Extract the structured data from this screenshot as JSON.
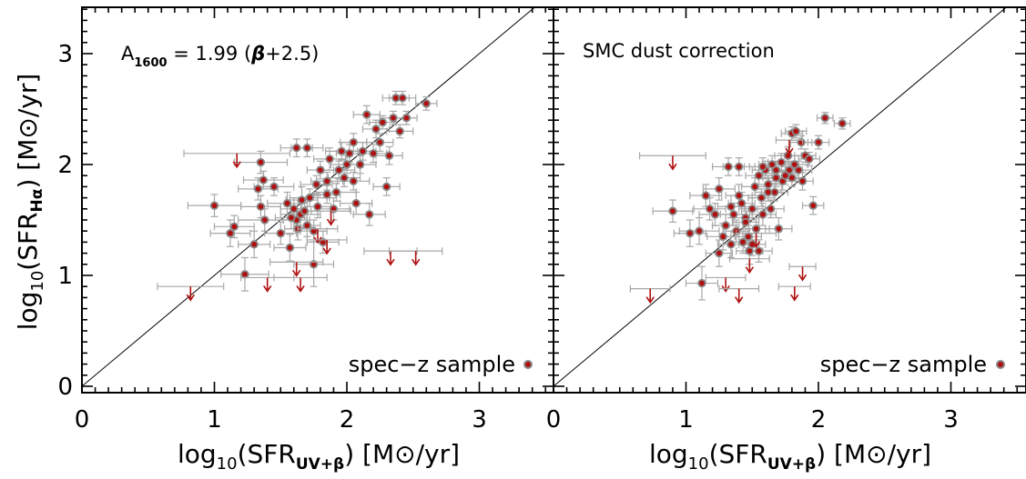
{
  "figure": {
    "ylabel": {
      "pre": "log",
      "sub": "10",
      "mid": "(SFR",
      "msub": "Hα",
      "post": ") [M",
      "sym": "⊙",
      "tail": "/yr]"
    },
    "xlabel": {
      "pre": "log",
      "sub": "10",
      "mid": "(SFR",
      "msub": "UV+β",
      "post": ") [M",
      "sym": "⊙",
      "tail": "/yr]"
    }
  },
  "colors": {
    "point_fill": "#b01010",
    "point_edge": "#8a8a8a",
    "errorbar": "#a8a8a8",
    "upper_limit": "#b01010",
    "axes": "#000000"
  },
  "chart_data": [
    {
      "type": "scatter",
      "panel": "left",
      "annotation": {
        "main": "A",
        "sub": "1600",
        "rest": " = 1.99 (",
        "beta": "β",
        "tail": "+2.5)"
      },
      "legend": {
        "label": "spec−z sample",
        "placement": "bottom-right"
      },
      "xlim": [
        0,
        3.5
      ],
      "ylim": [
        -0.05,
        3.5
      ],
      "xticks": [
        0,
        1,
        2,
        3
      ],
      "yticks": [
        0,
        1,
        2,
        3
      ],
      "one_to_one_line": true,
      "series": [
        {
          "kind": "points",
          "points": [
            {
              "x": 1.0,
              "y": 1.63,
              "xerr": 0.2,
              "yerr": 0.1
            },
            {
              "x": 1.12,
              "y": 1.38,
              "xerr": 0.15,
              "yerr": 0.12
            },
            {
              "x": 1.15,
              "y": 1.44,
              "xerr": 0.15,
              "yerr": 0.1
            },
            {
              "x": 1.23,
              "y": 1.01,
              "xerr": 0.18,
              "yerr": 0.15
            },
            {
              "x": 1.3,
              "y": 1.28,
              "xerr": 0.12,
              "yerr": 0.12
            },
            {
              "x": 1.33,
              "y": 1.78,
              "xerr": 0.15,
              "yerr": 0.1
            },
            {
              "x": 1.35,
              "y": 2.02,
              "xerr": 0.2,
              "yerr": 0.1
            },
            {
              "x": 1.37,
              "y": 1.86,
              "xerr": 0.15,
              "yerr": 0.08
            },
            {
              "x": 1.38,
              "y": 1.5,
              "xerr": 0.2,
              "yerr": 0.1
            },
            {
              "x": 1.45,
              "y": 1.8,
              "xerr": 0.15,
              "yerr": 0.08
            },
            {
              "x": 1.5,
              "y": 1.38,
              "xerr": 0.12,
              "yerr": 0.1
            },
            {
              "x": 1.55,
              "y": 1.65,
              "xerr": 0.15,
              "yerr": 0.1
            },
            {
              "x": 1.57,
              "y": 1.25,
              "xerr": 0.12,
              "yerr": 0.12
            },
            {
              "x": 1.6,
              "y": 1.6,
              "xerr": 0.1,
              "yerr": 0.1
            },
            {
              "x": 1.62,
              "y": 1.5,
              "xerr": 0.1,
              "yerr": 0.1
            },
            {
              "x": 1.63,
              "y": 1.42,
              "xerr": 0.1,
              "yerr": 0.1
            },
            {
              "x": 1.65,
              "y": 1.55,
              "xerr": 0.15,
              "yerr": 0.12
            },
            {
              "x": 1.66,
              "y": 1.68,
              "xerr": 0.12,
              "yerr": 0.12
            },
            {
              "x": 1.68,
              "y": 1.58,
              "xerr": 0.1,
              "yerr": 0.08
            },
            {
              "x": 1.7,
              "y": 1.45,
              "xerr": 0.1,
              "yerr": 0.1
            },
            {
              "x": 1.72,
              "y": 1.7,
              "xerr": 0.15,
              "yerr": 0.08
            },
            {
              "x": 1.75,
              "y": 1.4,
              "xerr": 0.1,
              "yerr": 0.1
            },
            {
              "x": 1.77,
              "y": 1.82,
              "xerr": 0.12,
              "yerr": 0.08
            },
            {
              "x": 1.78,
              "y": 1.62,
              "xerr": 0.1,
              "yerr": 0.1
            },
            {
              "x": 1.8,
              "y": 1.95,
              "xerr": 0.1,
              "yerr": 0.08
            },
            {
              "x": 1.82,
              "y": 1.3,
              "xerr": 0.12,
              "yerr": 0.1
            },
            {
              "x": 1.85,
              "y": 1.73,
              "xerr": 0.1,
              "yerr": 0.08
            },
            {
              "x": 1.87,
              "y": 2.05,
              "xerr": 0.12,
              "yerr": 0.1
            },
            {
              "x": 1.9,
              "y": 1.6,
              "xerr": 0.12,
              "yerr": 0.1
            },
            {
              "x": 1.92,
              "y": 1.75,
              "xerr": 0.15,
              "yerr": 0.08
            },
            {
              "x": 1.94,
              "y": 1.95,
              "xerr": 0.12,
              "yerr": 0.08
            },
            {
              "x": 1.96,
              "y": 2.12,
              "xerr": 0.12,
              "yerr": 0.08
            },
            {
              "x": 1.98,
              "y": 1.88,
              "xerr": 0.12,
              "yerr": 0.08
            },
            {
              "x": 2.0,
              "y": 2.0,
              "xerr": 0.12,
              "yerr": 0.08
            },
            {
              "x": 2.02,
              "y": 2.1,
              "xerr": 0.1,
              "yerr": 0.08
            },
            {
              "x": 2.05,
              "y": 1.85,
              "xerr": 0.12,
              "yerr": 0.08
            },
            {
              "x": 2.07,
              "y": 1.65,
              "xerr": 0.12,
              "yerr": 0.1
            },
            {
              "x": 2.1,
              "y": 2.0,
              "xerr": 0.12,
              "yerr": 0.08
            },
            {
              "x": 2.12,
              "y": 2.12,
              "xerr": 0.1,
              "yerr": 0.08
            },
            {
              "x": 2.15,
              "y": 2.45,
              "xerr": 0.1,
              "yerr": 0.08
            },
            {
              "x": 2.17,
              "y": 1.55,
              "xerr": 0.12,
              "yerr": 0.1
            },
            {
              "x": 2.2,
              "y": 2.1,
              "xerr": 0.1,
              "yerr": 0.08
            },
            {
              "x": 2.22,
              "y": 2.32,
              "xerr": 0.1,
              "yerr": 0.08
            },
            {
              "x": 2.25,
              "y": 2.2,
              "xerr": 0.1,
              "yerr": 0.08
            },
            {
              "x": 2.27,
              "y": 2.38,
              "xerr": 0.1,
              "yerr": 0.06
            },
            {
              "x": 2.3,
              "y": 1.8,
              "xerr": 0.1,
              "yerr": 0.08
            },
            {
              "x": 2.32,
              "y": 2.08,
              "xerr": 0.1,
              "yerr": 0.08
            },
            {
              "x": 2.35,
              "y": 2.42,
              "xerr": 0.1,
              "yerr": 0.06
            },
            {
              "x": 2.37,
              "y": 2.6,
              "xerr": 0.1,
              "yerr": 0.06
            },
            {
              "x": 2.4,
              "y": 2.3,
              "xerr": 0.1,
              "yerr": 0.06
            },
            {
              "x": 2.42,
              "y": 2.6,
              "xerr": 0.1,
              "yerr": 0.06
            },
            {
              "x": 2.6,
              "y": 2.55,
              "xerr": 0.08,
              "yerr": 0.06
            },
            {
              "x": 1.35,
              "y": 1.62,
              "xerr": 0.15,
              "yerr": 0.1
            },
            {
              "x": 1.58,
              "y": 1.52,
              "xerr": 0.12,
              "yerr": 0.1
            },
            {
              "x": 1.85,
              "y": 1.85,
              "xerr": 0.12,
              "yerr": 0.08
            },
            {
              "x": 2.05,
              "y": 2.2,
              "xerr": 0.1,
              "yerr": 0.08
            },
            {
              "x": 1.62,
              "y": 2.15,
              "xerr": 0.12,
              "yerr": 0.08
            },
            {
              "x": 1.7,
              "y": 2.15,
              "xerr": 0.12,
              "yerr": 0.08
            },
            {
              "x": 2.45,
              "y": 2.42,
              "xerr": 0.08,
              "yerr": 0.06
            },
            {
              "x": 1.75,
              "y": 1.1,
              "xerr": 0.15,
              "yerr": 0.2
            }
          ]
        },
        {
          "kind": "upper_limits",
          "points": [
            {
              "x": 0.82,
              "y": 0.9,
              "xerr": 0.25
            },
            {
              "x": 1.17,
              "y": 2.1,
              "xerr": 0.4
            },
            {
              "x": 1.4,
              "y": 0.98,
              "xerr": 0.2
            },
            {
              "x": 1.65,
              "y": 0.98,
              "xerr": 0.2
            },
            {
              "x": 1.62,
              "y": 1.12,
              "xerr": 0.2
            },
            {
              "x": 1.78,
              "y": 1.42,
              "xerr": 0.15
            },
            {
              "x": 1.85,
              "y": 1.32,
              "xerr": 0.15
            },
            {
              "x": 1.88,
              "y": 1.58,
              "xerr": 0.15
            },
            {
              "x": 2.33,
              "y": 1.22,
              "xerr": 0.2
            },
            {
              "x": 2.52,
              "y": 1.22,
              "xerr": 0.2
            }
          ]
        }
      ]
    },
    {
      "type": "scatter",
      "panel": "right",
      "annotation": {
        "text": "SMC dust correction"
      },
      "legend": {
        "label": "spec−z sample",
        "placement": "bottom-right"
      },
      "xlim": [
        0,
        3.5
      ],
      "ylim": [
        -0.05,
        3.5
      ],
      "xticks": [
        0,
        1,
        2,
        3
      ],
      "yticks": [],
      "one_to_one_line": true,
      "series": [
        {
          "kind": "points",
          "points": [
            {
              "x": 0.9,
              "y": 1.58,
              "xerr": 0.15,
              "yerr": 0.1
            },
            {
              "x": 1.03,
              "y": 1.38,
              "xerr": 0.12,
              "yerr": 0.12
            },
            {
              "x": 1.1,
              "y": 1.4,
              "xerr": 0.15,
              "yerr": 0.12
            },
            {
              "x": 1.12,
              "y": 0.93,
              "xerr": 0.12,
              "yerr": 0.15
            },
            {
              "x": 1.15,
              "y": 1.72,
              "xerr": 0.12,
              "yerr": 0.1
            },
            {
              "x": 1.18,
              "y": 1.6,
              "xerr": 0.12,
              "yerr": 0.1
            },
            {
              "x": 1.22,
              "y": 1.55,
              "xerr": 0.12,
              "yerr": 0.1
            },
            {
              "x": 1.25,
              "y": 1.78,
              "xerr": 0.12,
              "yerr": 0.1
            },
            {
              "x": 1.28,
              "y": 1.35,
              "xerr": 0.12,
              "yerr": 0.12
            },
            {
              "x": 1.3,
              "y": 1.45,
              "xerr": 0.1,
              "yerr": 0.1
            },
            {
              "x": 1.32,
              "y": 1.98,
              "xerr": 0.12,
              "yerr": 0.08
            },
            {
              "x": 1.34,
              "y": 1.28,
              "xerr": 0.1,
              "yerr": 0.12
            },
            {
              "x": 1.36,
              "y": 1.55,
              "xerr": 0.1,
              "yerr": 0.1
            },
            {
              "x": 1.38,
              "y": 1.4,
              "xerr": 0.1,
              "yerr": 0.1
            },
            {
              "x": 1.4,
              "y": 1.98,
              "xerr": 0.12,
              "yerr": 0.08
            },
            {
              "x": 1.42,
              "y": 1.65,
              "xerr": 0.1,
              "yerr": 0.1
            },
            {
              "x": 1.43,
              "y": 1.3,
              "xerr": 0.1,
              "yerr": 0.1
            },
            {
              "x": 1.45,
              "y": 1.52,
              "xerr": 0.1,
              "yerr": 0.1
            },
            {
              "x": 1.47,
              "y": 1.35,
              "xerr": 0.1,
              "yerr": 0.1
            },
            {
              "x": 1.48,
              "y": 1.22,
              "xerr": 0.1,
              "yerr": 0.12
            },
            {
              "x": 1.5,
              "y": 1.6,
              "xerr": 0.1,
              "yerr": 0.1
            },
            {
              "x": 1.52,
              "y": 1.8,
              "xerr": 0.1,
              "yerr": 0.08
            },
            {
              "x": 1.53,
              "y": 1.42,
              "xerr": 0.1,
              "yerr": 0.1
            },
            {
              "x": 1.55,
              "y": 1.9,
              "xerr": 0.1,
              "yerr": 0.08
            },
            {
              "x": 1.57,
              "y": 1.7,
              "xerr": 0.1,
              "yerr": 0.08
            },
            {
              "x": 1.58,
              "y": 1.55,
              "xerr": 0.1,
              "yerr": 0.1
            },
            {
              "x": 1.6,
              "y": 1.95,
              "xerr": 0.1,
              "yerr": 0.08
            },
            {
              "x": 1.62,
              "y": 1.82,
              "xerr": 0.1,
              "yerr": 0.08
            },
            {
              "x": 1.64,
              "y": 1.6,
              "xerr": 0.1,
              "yerr": 0.08
            },
            {
              "x": 1.65,
              "y": 2.0,
              "xerr": 0.1,
              "yerr": 0.08
            },
            {
              "x": 1.67,
              "y": 1.75,
              "xerr": 0.1,
              "yerr": 0.08
            },
            {
              "x": 1.68,
              "y": 1.88,
              "xerr": 0.1,
              "yerr": 0.08
            },
            {
              "x": 1.7,
              "y": 1.42,
              "xerr": 0.1,
              "yerr": 0.1
            },
            {
              "x": 1.72,
              "y": 2.02,
              "xerr": 0.1,
              "yerr": 0.08
            },
            {
              "x": 1.73,
              "y": 1.85,
              "xerr": 0.1,
              "yerr": 0.08
            },
            {
              "x": 1.75,
              "y": 1.9,
              "xerr": 0.1,
              "yerr": 0.08
            },
            {
              "x": 1.77,
              "y": 2.08,
              "xerr": 0.1,
              "yerr": 0.08
            },
            {
              "x": 1.78,
              "y": 1.95,
              "xerr": 0.1,
              "yerr": 0.08
            },
            {
              "x": 1.8,
              "y": 1.88,
              "xerr": 0.1,
              "yerr": 0.08
            },
            {
              "x": 1.8,
              "y": 2.28,
              "xerr": 0.08,
              "yerr": 0.06
            },
            {
              "x": 1.82,
              "y": 2.0,
              "xerr": 0.1,
              "yerr": 0.08
            },
            {
              "x": 1.83,
              "y": 2.3,
              "xerr": 0.08,
              "yerr": 0.06
            },
            {
              "x": 1.85,
              "y": 1.95,
              "xerr": 0.1,
              "yerr": 0.08
            },
            {
              "x": 1.87,
              "y": 2.2,
              "xerr": 0.08,
              "yerr": 0.06
            },
            {
              "x": 1.88,
              "y": 1.85,
              "xerr": 0.08,
              "yerr": 0.08
            },
            {
              "x": 1.9,
              "y": 2.08,
              "xerr": 0.08,
              "yerr": 0.06
            },
            {
              "x": 1.93,
              "y": 2.05,
              "xerr": 0.08,
              "yerr": 0.06
            },
            {
              "x": 1.96,
              "y": 1.63,
              "xerr": 0.08,
              "yerr": 0.08
            },
            {
              "x": 2.0,
              "y": 2.2,
              "xerr": 0.08,
              "yerr": 0.06
            },
            {
              "x": 2.05,
              "y": 2.42,
              "xerr": 0.06,
              "yerr": 0.05
            },
            {
              "x": 2.18,
              "y": 2.37,
              "xerr": 0.06,
              "yerr": 0.05
            },
            {
              "x": 1.25,
              "y": 1.2,
              "xerr": 0.1,
              "yerr": 0.12
            },
            {
              "x": 1.4,
              "y": 1.72,
              "xerr": 0.1,
              "yerr": 0.1
            },
            {
              "x": 1.58,
              "y": 1.98,
              "xerr": 0.1,
              "yerr": 0.08
            },
            {
              "x": 1.62,
              "y": 1.75,
              "xerr": 0.1,
              "yerr": 0.08
            },
            {
              "x": 1.55,
              "y": 1.22,
              "xerr": 0.1,
              "yerr": 0.1
            },
            {
              "x": 1.45,
              "y": 1.48,
              "xerr": 0.1,
              "yerr": 0.1
            },
            {
              "x": 1.5,
              "y": 1.28,
              "xerr": 0.1,
              "yerr": 0.1
            },
            {
              "x": 1.68,
              "y": 1.95,
              "xerr": 0.08,
              "yerr": 0.08
            },
            {
              "x": 1.34,
              "y": 1.62,
              "xerr": 0.1,
              "yerr": 0.1
            }
          ]
        },
        {
          "kind": "upper_limits",
          "points": [
            {
              "x": 0.73,
              "y": 0.88,
              "xerr": 0.15
            },
            {
              "x": 0.9,
              "y": 2.08,
              "xerr": 0.25
            },
            {
              "x": 1.3,
              "y": 0.98,
              "xerr": 0.15
            },
            {
              "x": 1.4,
              "y": 0.88,
              "xerr": 0.15
            },
            {
              "x": 1.48,
              "y": 1.15,
              "xerr": 0.15
            },
            {
              "x": 1.53,
              "y": 1.38,
              "xerr": 0.15
            },
            {
              "x": 1.82,
              "y": 0.9,
              "xerr": 0.12
            },
            {
              "x": 1.88,
              "y": 1.08,
              "xerr": 0.1
            },
            {
              "x": 1.78,
              "y": 2.22,
              "xerr": 0.1
            }
          ]
        }
      ]
    }
  ]
}
